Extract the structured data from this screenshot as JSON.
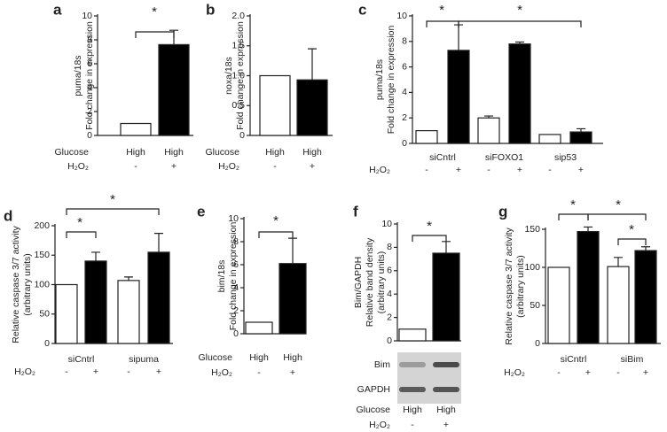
{
  "chart_data": [
    {
      "type": "bar",
      "panel": "a",
      "ylabel": [
        "puma/18s",
        "Fold change in expression"
      ],
      "ylim": [
        0,
        10
      ],
      "yticks": [
        0,
        2,
        4,
        6,
        8,
        10
      ],
      "values": [
        1,
        7.6
      ],
      "errors": [
        null,
        1.2
      ],
      "colors": [
        "#ffffff",
        "#000000"
      ],
      "x_rows": [
        {
          "label": "Glucose",
          "values": [
            "High",
            "High"
          ]
        },
        {
          "label": "H₂O₂",
          "values": [
            "-",
            "+"
          ]
        }
      ],
      "annotations": [
        "*"
      ]
    },
    {
      "type": "bar",
      "panel": "b",
      "ylabel": [
        "noxa/18s",
        "Fold change in expression"
      ],
      "ylim": [
        0,
        2
      ],
      "yticks": [
        0,
        0.5,
        {
          "value": 1,
          "label": "1.0"
        },
        1.5,
        {
          "value": 2,
          "label": "2.0"
        }
      ],
      "values": [
        1,
        0.93
      ],
      "errors": [
        null,
        0.52
      ],
      "colors": [
        "#ffffff",
        "#000000"
      ],
      "x_rows": [
        {
          "label": "Glucose",
          "values": [
            "High",
            "High"
          ]
        },
        {
          "label": "H₂O₂",
          "values": [
            "-",
            "+"
          ]
        }
      ],
      "annotations": []
    },
    {
      "type": "bar",
      "panel": "c",
      "ylabel": [
        "puma/18s",
        "Fold change in expression"
      ],
      "ylim": [
        0,
        10
      ],
      "yticks": [
        0,
        2,
        4,
        6,
        8,
        10
      ],
      "values": [
        1,
        7.3,
        2,
        7.8,
        0.7,
        0.9
      ],
      "errors": [
        null,
        2,
        0.15,
        0.15,
        null,
        0.25
      ],
      "colors": [
        "#ffffff",
        "#000000",
        "#ffffff",
        "#000000",
        "#ffffff",
        "#000000"
      ],
      "groups": [
        "siCntrl",
        "siFOXO1",
        "sip53"
      ],
      "x_rows": [
        {
          "label": "H₂O₂",
          "values": [
            "-",
            "+",
            "-",
            "+",
            "-",
            "+"
          ]
        }
      ],
      "annotations": [
        "*",
        "*"
      ]
    },
    {
      "type": "bar",
      "panel": "d",
      "ylabel": [
        "Relative caspase 3/7 activity",
        "(arbitrary units)"
      ],
      "ylim": [
        0,
        200
      ],
      "yticks": [
        0,
        50,
        100,
        150,
        200
      ],
      "values": [
        100,
        140,
        107,
        155
      ],
      "errors": [
        null,
        15,
        6,
        32
      ],
      "colors": [
        "#ffffff",
        "#000000",
        "#ffffff",
        "#000000"
      ],
      "groups": [
        "siCntrl",
        "sipuma"
      ],
      "x_rows": [
        {
          "label": "H₂O₂",
          "values": [
            "-",
            "+",
            "-",
            "+"
          ]
        }
      ],
      "annotations": [
        "*",
        "*"
      ]
    },
    {
      "type": "bar",
      "panel": "e",
      "ylabel": [
        "bim/18s",
        "Fold change in expression"
      ],
      "ylim": [
        0,
        10
      ],
      "yticks": [
        0,
        2,
        4,
        6,
        8,
        10
      ],
      "values": [
        1,
        6.1
      ],
      "errors": [
        null,
        2.2
      ],
      "colors": [
        "#ffffff",
        "#000000"
      ],
      "x_rows": [
        {
          "label": "Glucose",
          "values": [
            "High",
            "High"
          ]
        },
        {
          "label": "H₂O₂",
          "values": [
            "-",
            "+"
          ]
        }
      ],
      "annotations": [
        "*"
      ]
    },
    {
      "type": "bar",
      "panel": "f",
      "ylabel": [
        "Bim/GAPDH",
        "Relative band density",
        "(arbitrary units)"
      ],
      "ylim": [
        0,
        10
      ],
      "yticks": [
        0,
        2,
        4,
        6,
        8,
        10
      ],
      "values": [
        1,
        7.5
      ],
      "errors": [
        null,
        1
      ],
      "colors": [
        "#ffffff",
        "#000000"
      ],
      "blot_labels": [
        "Bim",
        "GAPDH"
      ],
      "x_rows": [
        {
          "label": "Glucose",
          "values": [
            "High",
            "High"
          ]
        },
        {
          "label": "H₂O₂",
          "values": [
            "-",
            "+"
          ]
        }
      ],
      "annotations": [
        "*"
      ]
    },
    {
      "type": "bar",
      "panel": "g",
      "ylabel": [
        "Relative caspase 3/7 activity",
        "(arbitrary units)"
      ],
      "ylim": [
        0,
        150
      ],
      "yticks": [
        0,
        50,
        100,
        150
      ],
      "values": [
        100,
        147,
        101,
        122
      ],
      "errors": [
        null,
        6,
        12,
        5
      ],
      "colors": [
        "#ffffff",
        "#000000",
        "#ffffff",
        "#000000"
      ],
      "groups": [
        "siCntrl",
        "siBim"
      ],
      "x_rows": [
        {
          "label": "H₂O₂",
          "values": [
            "-",
            "+",
            "-",
            "+"
          ]
        }
      ],
      "annotations": [
        "*",
        "*",
        "*"
      ]
    }
  ]
}
